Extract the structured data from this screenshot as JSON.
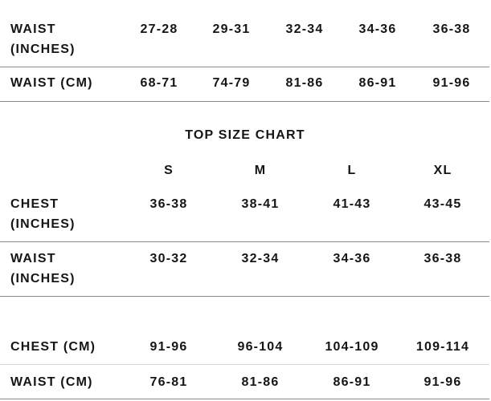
{
  "waist_table": {
    "rows": [
      {
        "label": "WAIST (INCHES)",
        "values": [
          "27-28",
          "29-31",
          "32-34",
          "34-36",
          "36-38"
        ]
      },
      {
        "label": "WAIST (CM)",
        "values": [
          "68-71",
          "74-79",
          "81-86",
          "86-91",
          "91-96"
        ]
      }
    ]
  },
  "top_size_chart": {
    "title": "TOP SIZE CHART",
    "header": [
      "S",
      "M",
      "L",
      "XL"
    ],
    "rows": [
      {
        "label": "CHEST (INCHES)",
        "values": [
          "36-38",
          "38-41",
          "41-43",
          "43-45"
        ]
      },
      {
        "label": "WAIST (INCHES)",
        "values": [
          "30-32",
          "32-34",
          "34-36",
          "36-38"
        ]
      },
      {
        "label": "CHEST (CM)",
        "values": [
          "91-96",
          "96-104",
          "104-109",
          "109-114"
        ]
      },
      {
        "label": "WAIST (CM)",
        "values": [
          "76-81",
          "81-86",
          "86-91",
          "91-96"
        ]
      }
    ]
  }
}
